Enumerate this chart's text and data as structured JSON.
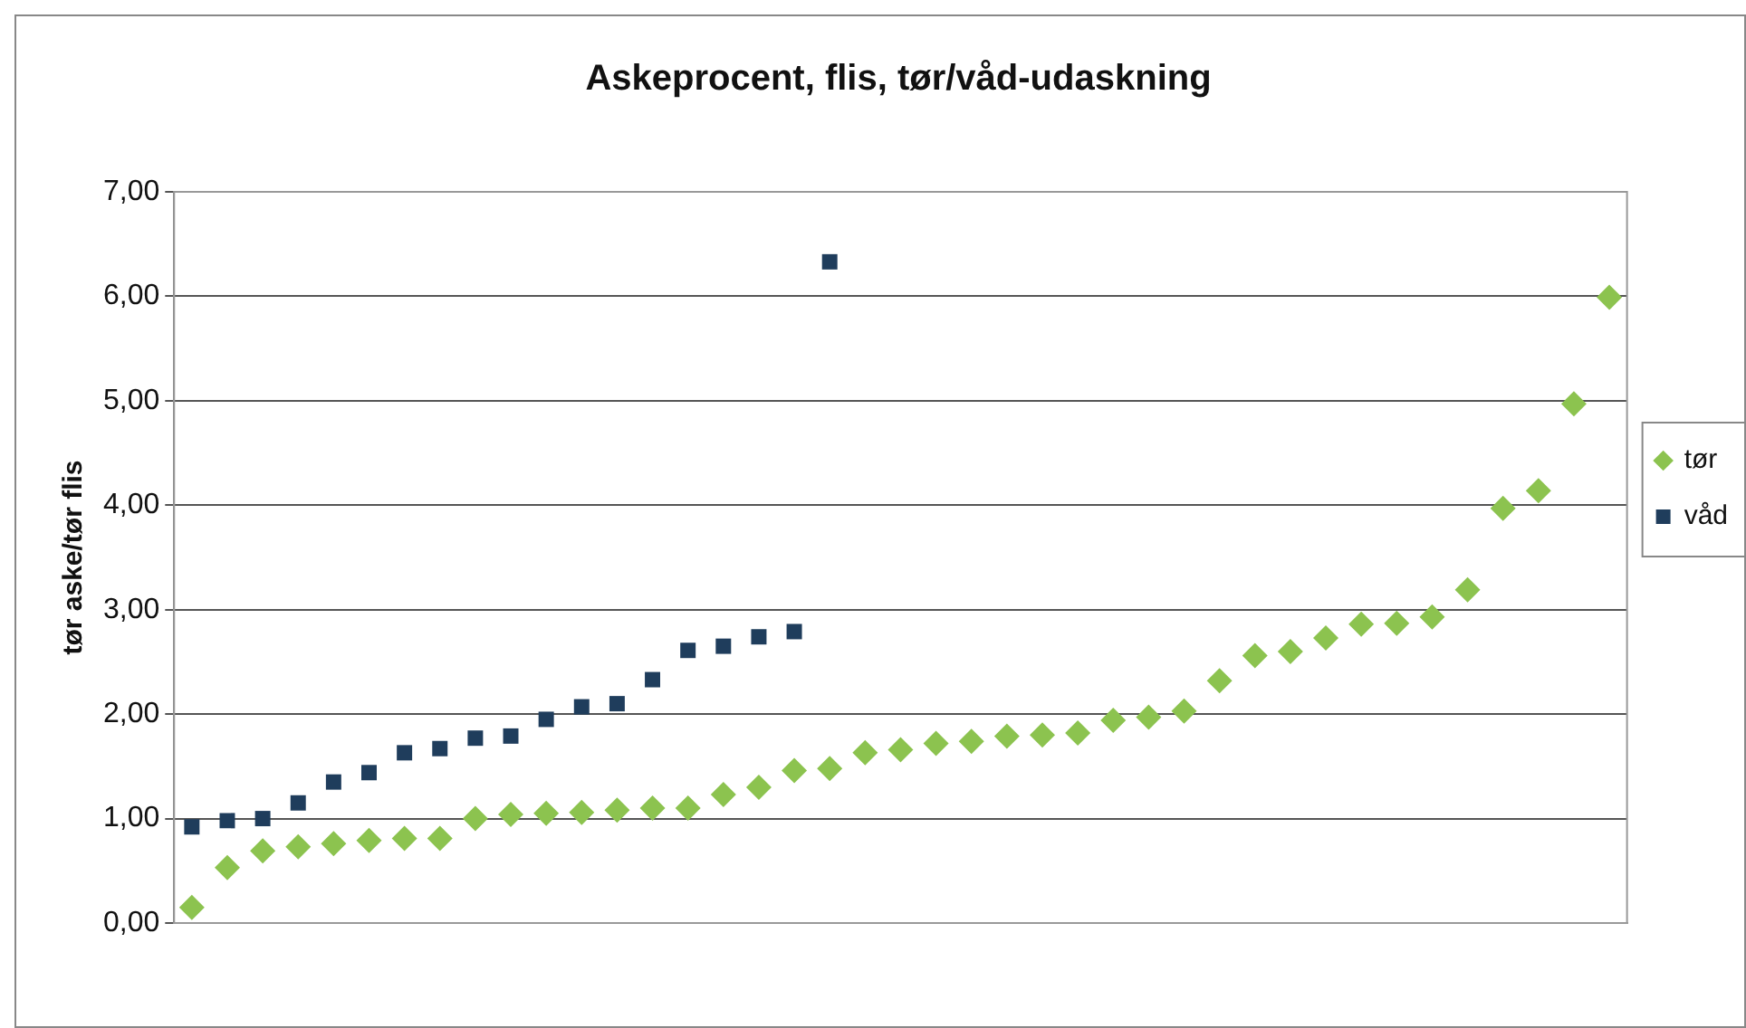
{
  "chart_data": {
    "type": "scatter",
    "title": "Askeprocent, flis, tør/våd-udaskning",
    "ylabel": "tør aske/tør flis",
    "categories": [
      null,
      null,
      null,
      null,
      null,
      null,
      null,
      null,
      null,
      null,
      null,
      null,
      null,
      null,
      null,
      null,
      null,
      null,
      null,
      null,
      null,
      null,
      null,
      null,
      null,
      null,
      null,
      null,
      null,
      null,
      null,
      null,
      null,
      null,
      null,
      null,
      null,
      null,
      null,
      null,
      null
    ],
    "series": [
      {
        "name": "tør",
        "color": "#8cc34f",
        "marker": "diamond",
        "values": [
          0.15,
          0.53,
          0.69,
          0.73,
          0.76,
          0.79,
          0.81,
          0.81,
          1.0,
          1.04,
          1.05,
          1.06,
          1.08,
          1.1,
          1.1,
          1.23,
          1.3,
          1.46,
          1.48,
          1.63,
          1.66,
          1.72,
          1.74,
          1.79,
          1.8,
          1.82,
          1.94,
          1.97,
          2.03,
          2.32,
          2.56,
          2.6,
          2.73,
          2.86,
          2.87,
          2.93,
          3.19,
          3.97,
          4.14,
          4.97,
          5.99
        ]
      },
      {
        "name": "våd",
        "color": "#1f3d5c",
        "marker": "square",
        "values": [
          0.92,
          0.98,
          1.0,
          1.15,
          1.35,
          1.44,
          1.63,
          1.67,
          1.77,
          1.79,
          1.95,
          2.07,
          2.1,
          2.33,
          2.61,
          2.65,
          2.74,
          2.79,
          6.33,
          null,
          null,
          null,
          null,
          null,
          null,
          null,
          null,
          null,
          null,
          null,
          null,
          null,
          null,
          null,
          null,
          null,
          null,
          null,
          null,
          null,
          null
        ]
      }
    ],
    "ylim": [
      0,
      7
    ],
    "yticks": [
      {
        "value": 0,
        "label": "0,00"
      },
      {
        "value": 1,
        "label": "1,00"
      },
      {
        "value": 2,
        "label": "2,00"
      },
      {
        "value": 3,
        "label": "3,00"
      },
      {
        "value": 4,
        "label": "4,00"
      },
      {
        "value": 5,
        "label": "5,00"
      },
      {
        "value": 6,
        "label": "6,00"
      },
      {
        "value": 7,
        "label": "7,00"
      }
    ],
    "grid": "y",
    "legend": "right",
    "tick_labels": "y"
  }
}
